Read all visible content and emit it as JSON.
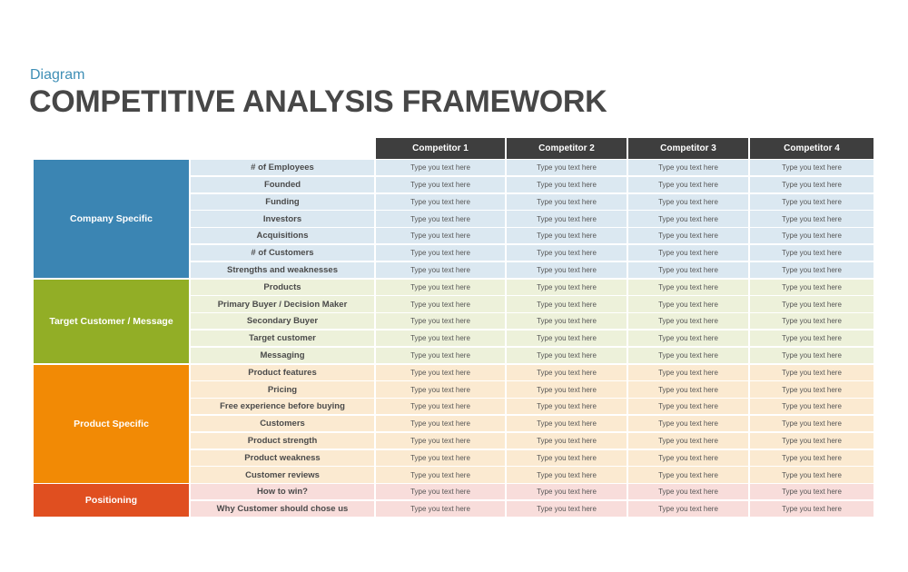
{
  "subtitle": "Diagram",
  "title": "COMPETITIVE ANALYSIS FRAMEWORK",
  "columns": [
    "Competitor 1",
    "Competitor 2",
    "Competitor 3",
    "Competitor 4"
  ],
  "placeholder_text": "Type you text here",
  "groups": [
    {
      "label": "Company Specific",
      "color": "#3b85b3",
      "row_bg": "#dbe8f1",
      "rows": [
        "# of Employees",
        "Founded",
        "Funding",
        "Investors",
        "Acquisitions",
        "# of Customers",
        "Strengths and weaknesses"
      ]
    },
    {
      "label": "Target Customer  /  Message",
      "color": "#92ae26",
      "row_bg": "#edf1da",
      "rows": [
        "Products",
        "Primary Buyer / Decision Maker",
        "Secondary Buyer",
        "Target customer",
        "Messaging"
      ]
    },
    {
      "label": "Product  Specific",
      "color": "#f28a05",
      "row_bg": "#fbead1",
      "rows": [
        "Product features",
        "Pricing",
        "Free experience before buying",
        "Customers",
        "Product strength",
        "Product weakness",
        "Customer reviews"
      ]
    },
    {
      "label": "Positioning",
      "color": "#e04f20",
      "row_bg": "#f8dddb",
      "rows": [
        "How to win?",
        "Why Customer should  chose us"
      ]
    }
  ]
}
